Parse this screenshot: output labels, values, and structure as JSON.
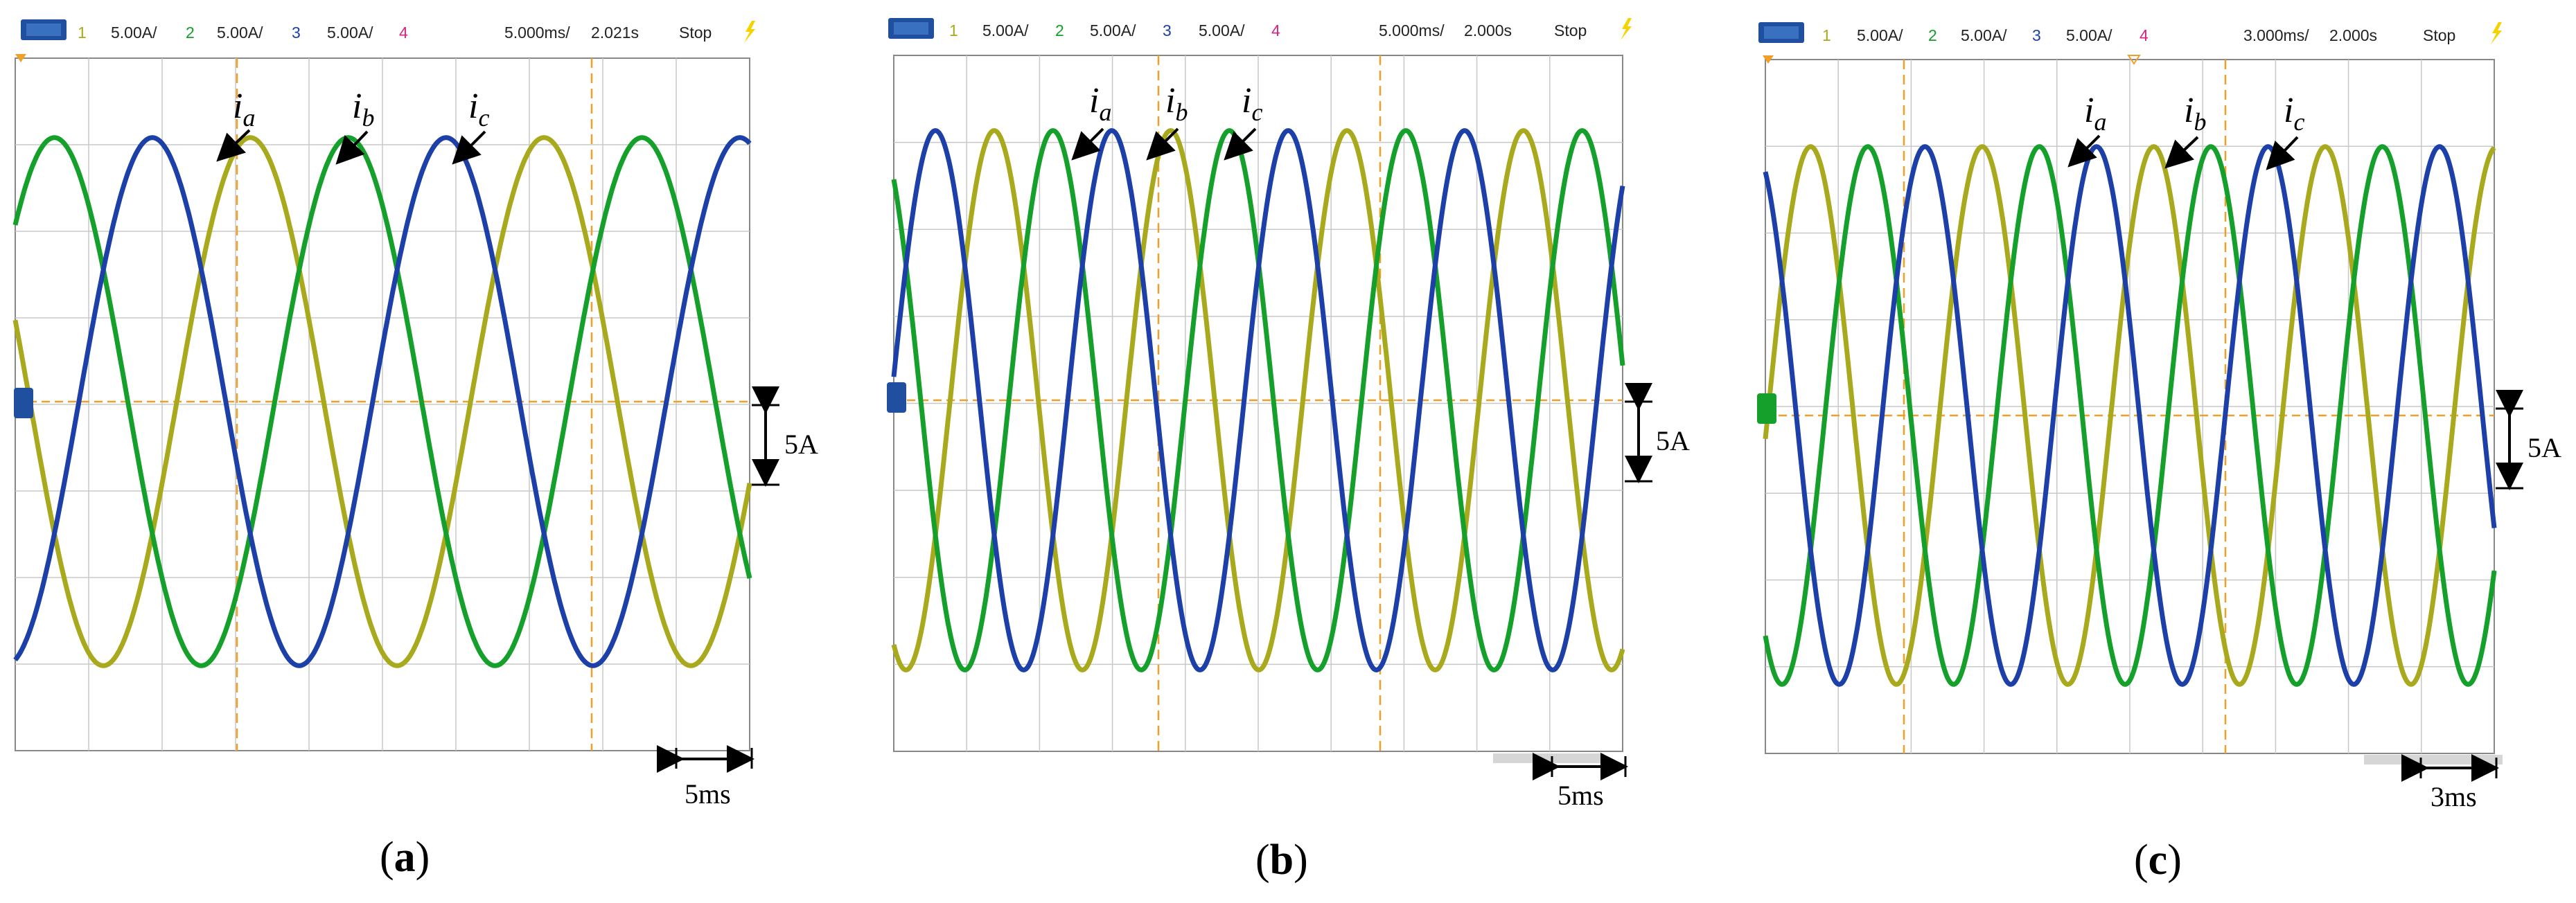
{
  "colors": {
    "ch1": "#a9a91e",
    "ch2": "#14a02a",
    "ch3": "#1d3fa8",
    "ch4": "#d8247e",
    "cursor": "#f0a028",
    "grid": "#c8c8c8",
    "trigger": "#f5d300",
    "badge": "#1f4f9e"
  },
  "chart_data": [
    {
      "type": "line",
      "caption_letter": "a",
      "status": {
        "ch1_num": "1",
        "ch1_scale": "5.00A/",
        "ch2_num": "2",
        "ch2_scale": "5.00A/",
        "ch3_num": "3",
        "ch3_scale": "5.00A/",
        "ch4_num": "4",
        "timebase": "5.000ms/",
        "delay": "2.021s",
        "run": "Stop"
      },
      "labels": {
        "ia": "i",
        "ia_sub": "a",
        "ib": "i",
        "ib_sub": "b",
        "ic": "i",
        "ic_sub": "c"
      },
      "amp_scale_label": "5A",
      "time_scale_label": "5ms",
      "x_range_ms": [
        0,
        50
      ],
      "y_range_div": [
        -4,
        4
      ],
      "series": [
        {
          "channel": 1,
          "period_ms": 20,
          "amplitude_div": 3.05,
          "phase_deg": 162
        },
        {
          "channel": 2,
          "period_ms": 20,
          "amplitude_div": 3.05,
          "phase_deg": 42
        },
        {
          "channel": 3,
          "period_ms": 20,
          "amplitude_div": 3.05,
          "phase_deg": -78
        }
      ]
    },
    {
      "type": "line",
      "caption_letter": "b",
      "status": {
        "ch1_num": "1",
        "ch1_scale": "5.00A/",
        "ch2_num": "2",
        "ch2_scale": "5.00A/",
        "ch3_num": "3",
        "ch3_scale": "5.00A/",
        "ch4_num": "4",
        "timebase": "5.000ms/",
        "delay": "2.000s",
        "run": "Stop"
      },
      "labels": {
        "ia": "i",
        "ia_sub": "a",
        "ib": "i",
        "ib_sub": "b",
        "ic": "i",
        "ic_sub": "c"
      },
      "amp_scale_label": "5A",
      "time_scale_label": "5ms",
      "x_range_ms": [
        0,
        50
      ],
      "y_range_div": [
        -4,
        4
      ],
      "series": [
        {
          "channel": 1,
          "period_ms": 12.1,
          "amplitude_div": 3.1,
          "phase_deg": -115
        },
        {
          "channel": 2,
          "period_ms": 12.1,
          "amplitude_div": 3.1,
          "phase_deg": 125
        },
        {
          "channel": 3,
          "period_ms": 12.1,
          "amplitude_div": 3.1,
          "phase_deg": 5
        }
      ]
    },
    {
      "type": "line",
      "caption_letter": "c",
      "status": {
        "ch1_num": "1",
        "ch1_scale": "5.00A/",
        "ch2_num": "2",
        "ch2_scale": "5.00A/",
        "ch3_num": "3",
        "ch3_scale": "5.00A/",
        "ch4_num": "4",
        "timebase": "3.000ms/",
        "delay": "2.000s",
        "run": "Stop"
      },
      "labels": {
        "ia": "i",
        "ia_sub": "a",
        "ib": "i",
        "ib_sub": "b",
        "ic": "i",
        "ic_sub": "c"
      },
      "amp_scale_label": "5A",
      "time_scale_label": "3ms",
      "x_range_ms": [
        0,
        30
      ],
      "y_range_div": [
        -4,
        4
      ],
      "series": [
        {
          "channel": 1,
          "period_ms": 7.06,
          "amplitude_div": 3.1,
          "phase_deg": -5
        },
        {
          "channel": 2,
          "period_ms": 7.06,
          "amplitude_div": 3.1,
          "phase_deg": -125
        },
        {
          "channel": 3,
          "period_ms": 7.06,
          "amplitude_div": 3.1,
          "phase_deg": 115
        }
      ]
    }
  ]
}
